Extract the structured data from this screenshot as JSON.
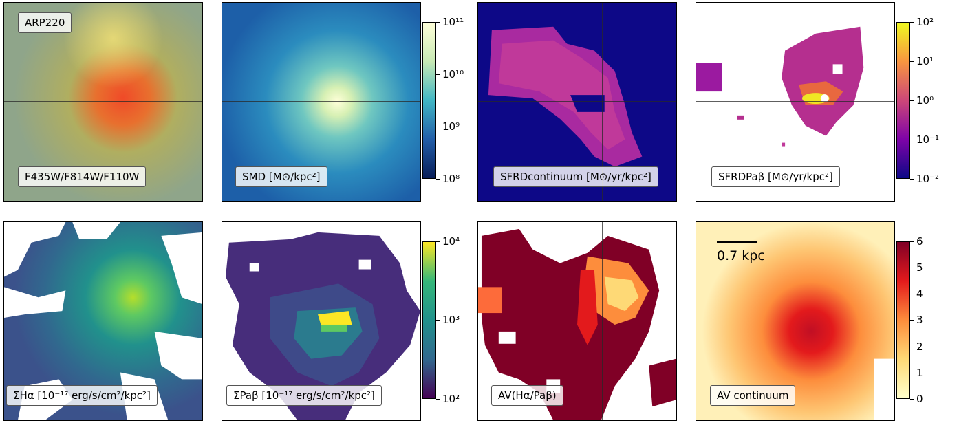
{
  "panels": [
    {
      "label": "ARP220",
      "label2": "F435W/F814W/F110W"
    },
    {
      "label": "SMD [M⊙/kpc²]"
    },
    {
      "label": "SFRDcontinuum [M⊙/yr/kpc²]"
    },
    {
      "label": "SFRDPaβ [M⊙/yr/kpc²]"
    },
    {
      "label": "ΣHα [10⁻¹⁷ erg/s/cm²/kpc²]"
    },
    {
      "label": "ΣPaβ [10⁻¹⁷ erg/s/cm²/kpc²]"
    },
    {
      "label": "AV(Hα/Paβ)"
    },
    {
      "label": "AV continuum"
    }
  ],
  "colorbars": {
    "smd": [
      "10¹¹",
      "10¹⁰",
      "10⁹",
      "10⁸"
    ],
    "sfrd": [
      "10²",
      "10¹",
      "10⁰",
      "10⁻¹",
      "10⁻²"
    ],
    "flux": [
      "10⁴",
      "10³",
      "10²"
    ],
    "av": [
      "6",
      "5",
      "4",
      "3",
      "2",
      "1",
      "0"
    ]
  },
  "scalebar": {
    "label": "0.7 kpc"
  },
  "colors": {
    "viridis": [
      "#440154",
      "#31688e",
      "#21918c",
      "#35b779",
      "#fde725"
    ],
    "ylgnbu": [
      "#081d58",
      "#225ea8",
      "#41b6c4",
      "#c7e9b4",
      "#ffffd9"
    ],
    "plasma": [
      "#0d0887",
      "#7e03a8",
      "#cc4778",
      "#f89540",
      "#f0f921"
    ],
    "ylorrd": [
      "#ffffcc",
      "#fed976",
      "#fd8d3c",
      "#e31a1c",
      "#800026"
    ]
  }
}
